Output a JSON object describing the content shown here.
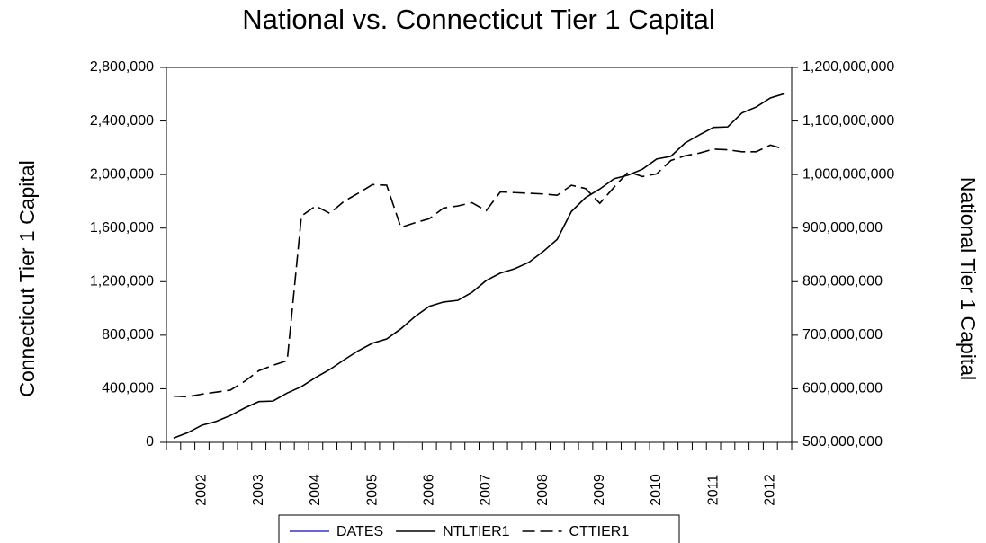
{
  "chart_data": {
    "type": "line",
    "title": "National vs. Connecticut Tier 1 Capital",
    "y_label": "Connecticut Tier 1 Capital",
    "y2_label": "National Tier 1 Capital",
    "categories": [
      null,
      null,
      "2002",
      null,
      null,
      null,
      "2003",
      null,
      null,
      null,
      "2004",
      null,
      null,
      null,
      "2005",
      null,
      null,
      null,
      "2006",
      null,
      null,
      null,
      "2007",
      null,
      null,
      null,
      "2008",
      null,
      null,
      null,
      "2009",
      null,
      null,
      null,
      "2010",
      null,
      null,
      null,
      "2011",
      null,
      null,
      null,
      "2012",
      null
    ],
    "ylim": [
      0,
      2800000
    ],
    "yticks": [
      {
        "value": 0,
        "label": "0"
      },
      {
        "value": 400000,
        "label": "400,000"
      },
      {
        "value": 800000,
        "label": "800,000"
      },
      {
        "value": 1200000,
        "label": "1,200,000"
      },
      {
        "value": 1600000,
        "label": "1,600,000"
      },
      {
        "value": 2000000,
        "label": "2,000,000"
      },
      {
        "value": 2400000,
        "label": "2,400,000"
      },
      {
        "value": 2800000,
        "label": "2,800,000"
      }
    ],
    "y2lim": [
      500000000,
      1200000000
    ],
    "y2ticks": [
      {
        "value": 500000000,
        "label": "500,000,000"
      },
      {
        "value": 600000000,
        "label": "600,000,000"
      },
      {
        "value": 700000000,
        "label": "700,000,000"
      },
      {
        "value": 800000000,
        "label": "800,000,000"
      },
      {
        "value": 900000000,
        "label": "900,000,000"
      },
      {
        "value": 1000000000,
        "label": "1,000,000,000"
      },
      {
        "value": 1100000000,
        "label": "1,100,000,000"
      },
      {
        "value": 1200000000,
        "label": "1,200,000,000"
      }
    ],
    "grid": false,
    "legend_position": "bottom",
    "legend_only": [
      {
        "name": "DATES",
        "color": "#3333cc"
      }
    ],
    "series": [
      {
        "name": "NTLTIER1",
        "color": "#000000",
        "line_style": "solid",
        "axis": "y2",
        "values": [
          508000000,
          518000000,
          532000000,
          539000000,
          550000000,
          564000000,
          576000000,
          577000000,
          592000000,
          604000000,
          621000000,
          636000000,
          654000000,
          671000000,
          685000000,
          693000000,
          712000000,
          735000000,
          754000000,
          762000000,
          765000000,
          780000000,
          802000000,
          816000000,
          824000000,
          836000000,
          856000000,
          879000000,
          931000000,
          957000000,
          973000000,
          992000000,
          999000000,
          1010000000,
          1029000000,
          1034000000,
          1059000000,
          1074000000,
          1088000000,
          1089000000,
          1115000000,
          1126000000,
          1143000000,
          1151000000
        ]
      },
      {
        "name": "CTTIER1",
        "color": "#000000",
        "line_style": "dashed",
        "values": [
          345000,
          340000,
          360000,
          375000,
          390000,
          455000,
          535000,
          575000,
          610000,
          1690000,
          1765000,
          1710000,
          1800000,
          1860000,
          1925000,
          1920000,
          1605000,
          1640000,
          1670000,
          1750000,
          1765000,
          1790000,
          1730000,
          1870000,
          1865000,
          1860000,
          1855000,
          1845000,
          1920000,
          1895000,
          1785000,
          1905000,
          2020000,
          1985000,
          2005000,
          2105000,
          2140000,
          2160000,
          2190000,
          2185000,
          2170000,
          2170000,
          2220000,
          2190000
        ]
      }
    ]
  }
}
